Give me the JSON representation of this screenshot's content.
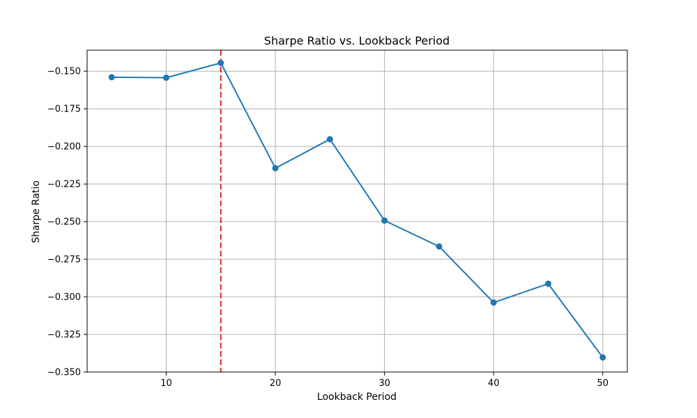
{
  "chart_data": {
    "type": "line",
    "title": "Sharpe Ratio vs. Lookback Period",
    "xlabel": "Lookback Period",
    "ylabel": "Sharpe Ratio",
    "x": [
      5,
      10,
      15,
      20,
      25,
      30,
      35,
      40,
      45,
      50
    ],
    "xlim": [
      2.75,
      52.25
    ],
    "ylim": [
      -0.35,
      -0.136
    ],
    "xticks": [
      10,
      20,
      30,
      40,
      50
    ],
    "yticks": [
      -0.15,
      -0.175,
      -0.2,
      -0.225,
      -0.25,
      -0.275,
      -0.3,
      -0.325,
      -0.35
    ],
    "xtick_labels": [
      "10",
      "20",
      "30",
      "40",
      "50"
    ],
    "ytick_labels": [
      "−0.150",
      "−0.175",
      "−0.200",
      "−0.225",
      "−0.250",
      "−0.275",
      "−0.300",
      "−0.325",
      "−0.350"
    ],
    "grid": true,
    "series": [
      {
        "values": [
          -0.154,
          -0.1543,
          -0.1445,
          -0.2145,
          -0.1952,
          -0.2493,
          -0.2665,
          -0.3038,
          -0.2913,
          -0.3403
        ],
        "color": "#1f77b4",
        "marker": "circle"
      }
    ],
    "reference_lines": [
      {
        "orientation": "vertical",
        "x": 15,
        "color": "#d62728",
        "style": "dashed"
      }
    ]
  }
}
